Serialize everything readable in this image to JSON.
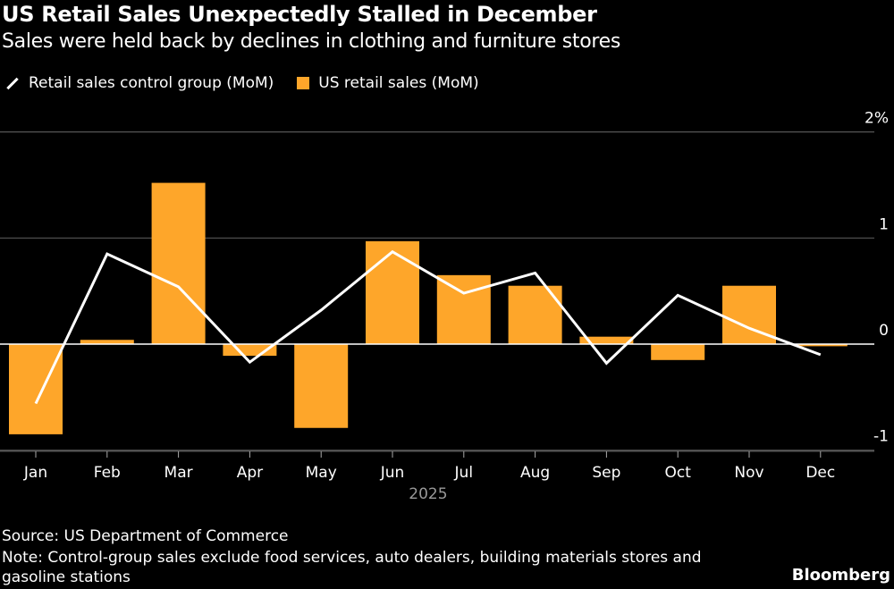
{
  "title": "US Retail Sales Unexpectedly Stalled in December",
  "subtitle": "Sales were held back by declines in clothing and furniture stores",
  "source": "Source: US Department of Commerce",
  "note_line1": "Note: Control-group sales exclude food services, auto dealers, building materials stores and",
  "note_line2": "gasoline stations",
  "brand": "Bloomberg",
  "chart_data": {
    "type": "bar",
    "categories": [
      "Jan",
      "Feb",
      "Mar",
      "Apr",
      "May",
      "Jun",
      "Jul",
      "Aug",
      "Sep",
      "Oct",
      "Nov",
      "Dec"
    ],
    "xlabel": "2025",
    "y_ticks": [
      "2%",
      "1",
      "0",
      "-1"
    ],
    "ylim": [
      -1,
      2
    ],
    "grid": true,
    "legend_position": "top-left",
    "series": [
      {
        "name": "Retail sales control group (MoM)",
        "type": "line",
        "color": "#ffffff",
        "values": [
          -0.56,
          0.85,
          0.54,
          -0.17,
          0.32,
          0.87,
          0.48,
          0.67,
          -0.18,
          0.46,
          0.15,
          -0.1
        ]
      },
      {
        "name": "US retail sales (MoM)",
        "type": "bar",
        "color": "#fea62a",
        "values": [
          -0.85,
          0.04,
          1.52,
          -0.11,
          -0.79,
          0.97,
          0.65,
          0.55,
          0.07,
          -0.15,
          0.55,
          -0.02
        ]
      }
    ]
  }
}
